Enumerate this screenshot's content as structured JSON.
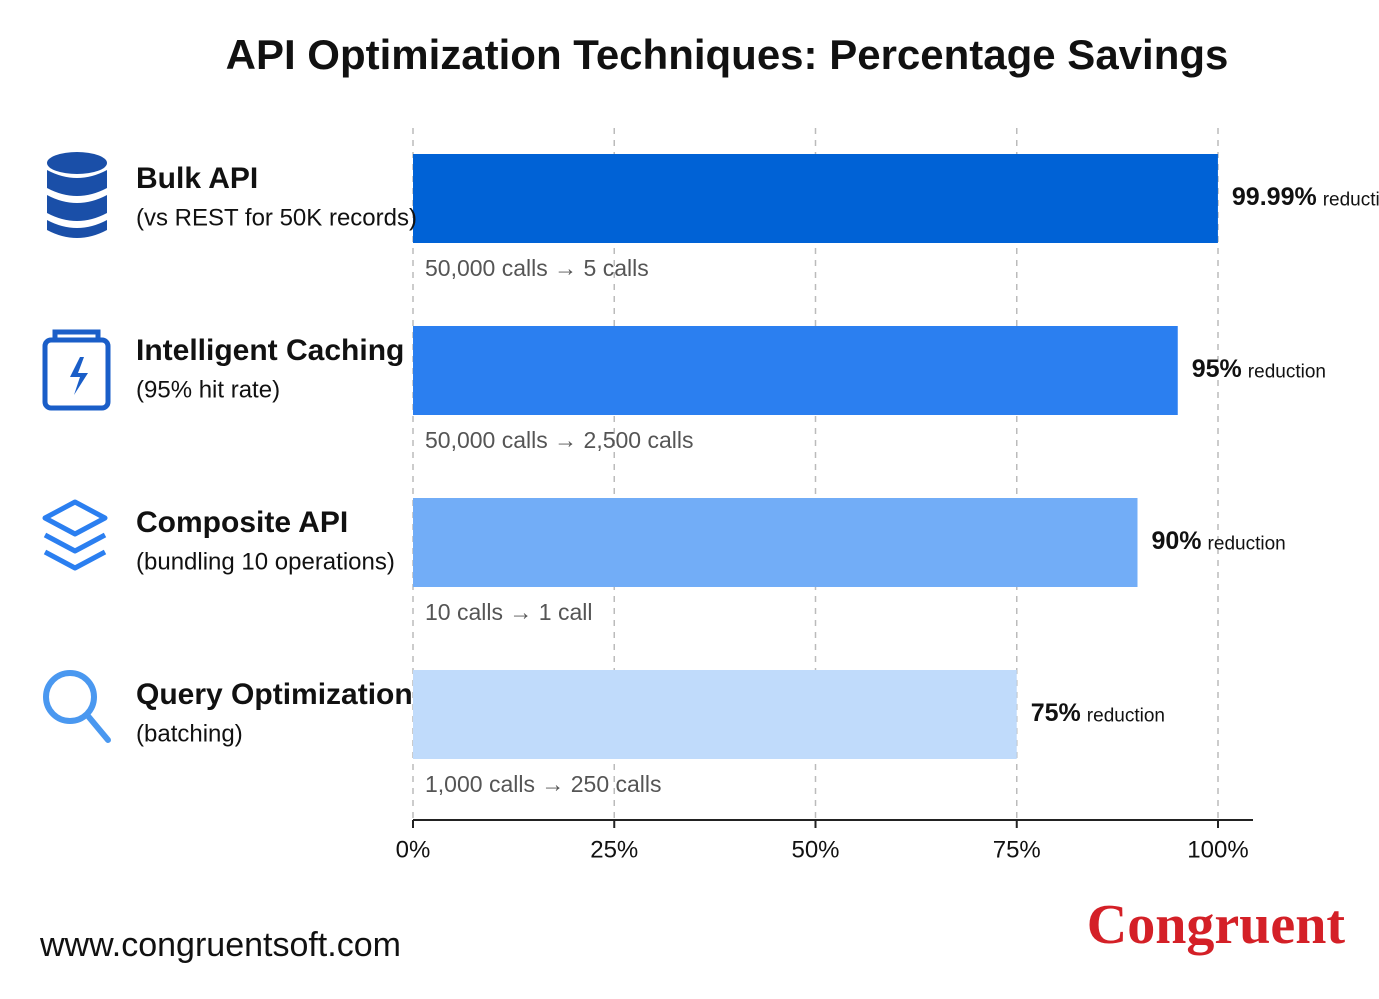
{
  "chart_data": {
    "type": "hbar",
    "title": "API Optimization Techniques: Percentage Savings",
    "categories": [
      "Bulk API",
      "Intelligent Caching",
      "Composite API",
      "Query Optimization"
    ],
    "subtitles": [
      "(vs REST for 50K records)",
      "(95% hit rate)",
      "(bundling 10 operations)",
      "(batching)"
    ],
    "values": [
      99.99,
      95,
      90,
      75
    ],
    "value_labels": [
      "99.99%",
      "95%",
      "90%",
      "75%"
    ],
    "value_label_suffix": "reduction",
    "notes": [
      "50,000 calls → 5 calls",
      "50,000 calls → 2,500 calls",
      "10 calls → 1 call",
      "1,000 calls → 250 calls"
    ],
    "colors": [
      "#0062d6",
      "#2b7ff0",
      "#72adf7",
      "#c0dbfb"
    ],
    "xlim": [
      0,
      100
    ],
    "xticks": [
      {
        "value": 0,
        "label": "0%"
      },
      {
        "value": 25,
        "label": "25%"
      },
      {
        "value": 50,
        "label": "50%"
      },
      {
        "value": 75,
        "label": "75%"
      },
      {
        "value": 100,
        "label": "100%"
      }
    ],
    "grid": true
  },
  "footer": {
    "website": "www.congruentsoft.com",
    "logo": "Congruent"
  }
}
